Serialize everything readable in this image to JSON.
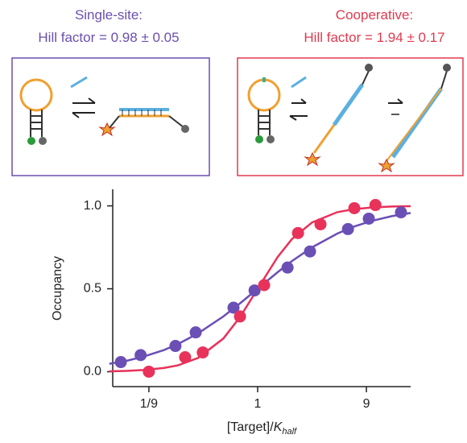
{
  "panels": [
    {
      "title": "Single-site:",
      "subtitle": "Hill factor = 0.98 ± 0.05",
      "color": "#6a4fb0"
    },
    {
      "title": "Cooperative:",
      "subtitle": "Hill factor = 1.94 ± 0.17",
      "color": "#e23a4f"
    }
  ],
  "chart_data": {
    "type": "scatter",
    "xscale": "log",
    "xlim": [
      0.0535,
      22
    ],
    "ylim": [
      -0.09,
      1.1
    ],
    "xticks": [
      {
        "value": 0.1111,
        "label": "1/9"
      },
      1,
      9
    ],
    "yticks": [
      {
        "value": 0,
        "label": "0.0"
      },
      {
        "value": 0.5,
        "label": "0.5"
      },
      {
        "value": 1,
        "label": "1.0"
      }
    ],
    "xlabel": {
      "text": "[Target]/",
      "italic": "K",
      "sub": "half"
    },
    "ylabel": "Occupancy",
    "series": [
      {
        "color": "#6a4fb5",
        "x": [
          0.063,
          0.094,
          0.19,
          0.286,
          0.614,
          0.94,
          1.83,
          2.88,
          6.2,
          9.45,
          18.1
        ],
        "values": [
          0.058,
          0.1,
          0.155,
          0.237,
          0.386,
          0.49,
          0.628,
          0.725,
          0.86,
          0.923,
          0.961
        ],
        "fit": {
          "x": [
            0.05,
            0.07,
            0.1,
            0.15,
            0.2,
            0.3,
            0.5,
            0.7,
            1,
            1.5,
            2,
            3,
            5,
            7,
            10,
            15,
            22
          ],
          "values": [
            0.048,
            0.065,
            0.091,
            0.13,
            0.167,
            0.231,
            0.333,
            0.412,
            0.5,
            0.6,
            0.667,
            0.75,
            0.833,
            0.875,
            0.909,
            0.938,
            0.957
          ]
        }
      },
      {
        "color": "#e8325a",
        "x": [
          0.111,
          0.231,
          0.33,
          0.7,
          1.14,
          2.26,
          3.56,
          7.05,
          10.8
        ],
        "values": [
          0.0,
          0.087,
          0.116,
          0.333,
          0.522,
          0.836,
          0.889,
          0.986,
          1.005
        ],
        "fit": {
          "x": [
            0.05,
            0.07,
            0.1,
            0.15,
            0.2,
            0.3,
            0.5,
            0.7,
            1,
            1.5,
            2,
            3,
            5,
            7,
            10,
            15,
            22
          ],
          "values": [
            0.0025,
            0.0049,
            0.0099,
            0.022,
            0.038,
            0.083,
            0.2,
            0.329,
            0.5,
            0.692,
            0.8,
            0.9,
            0.962,
            0.98,
            0.99,
            0.996,
            0.998
          ]
        }
      }
    ]
  }
}
